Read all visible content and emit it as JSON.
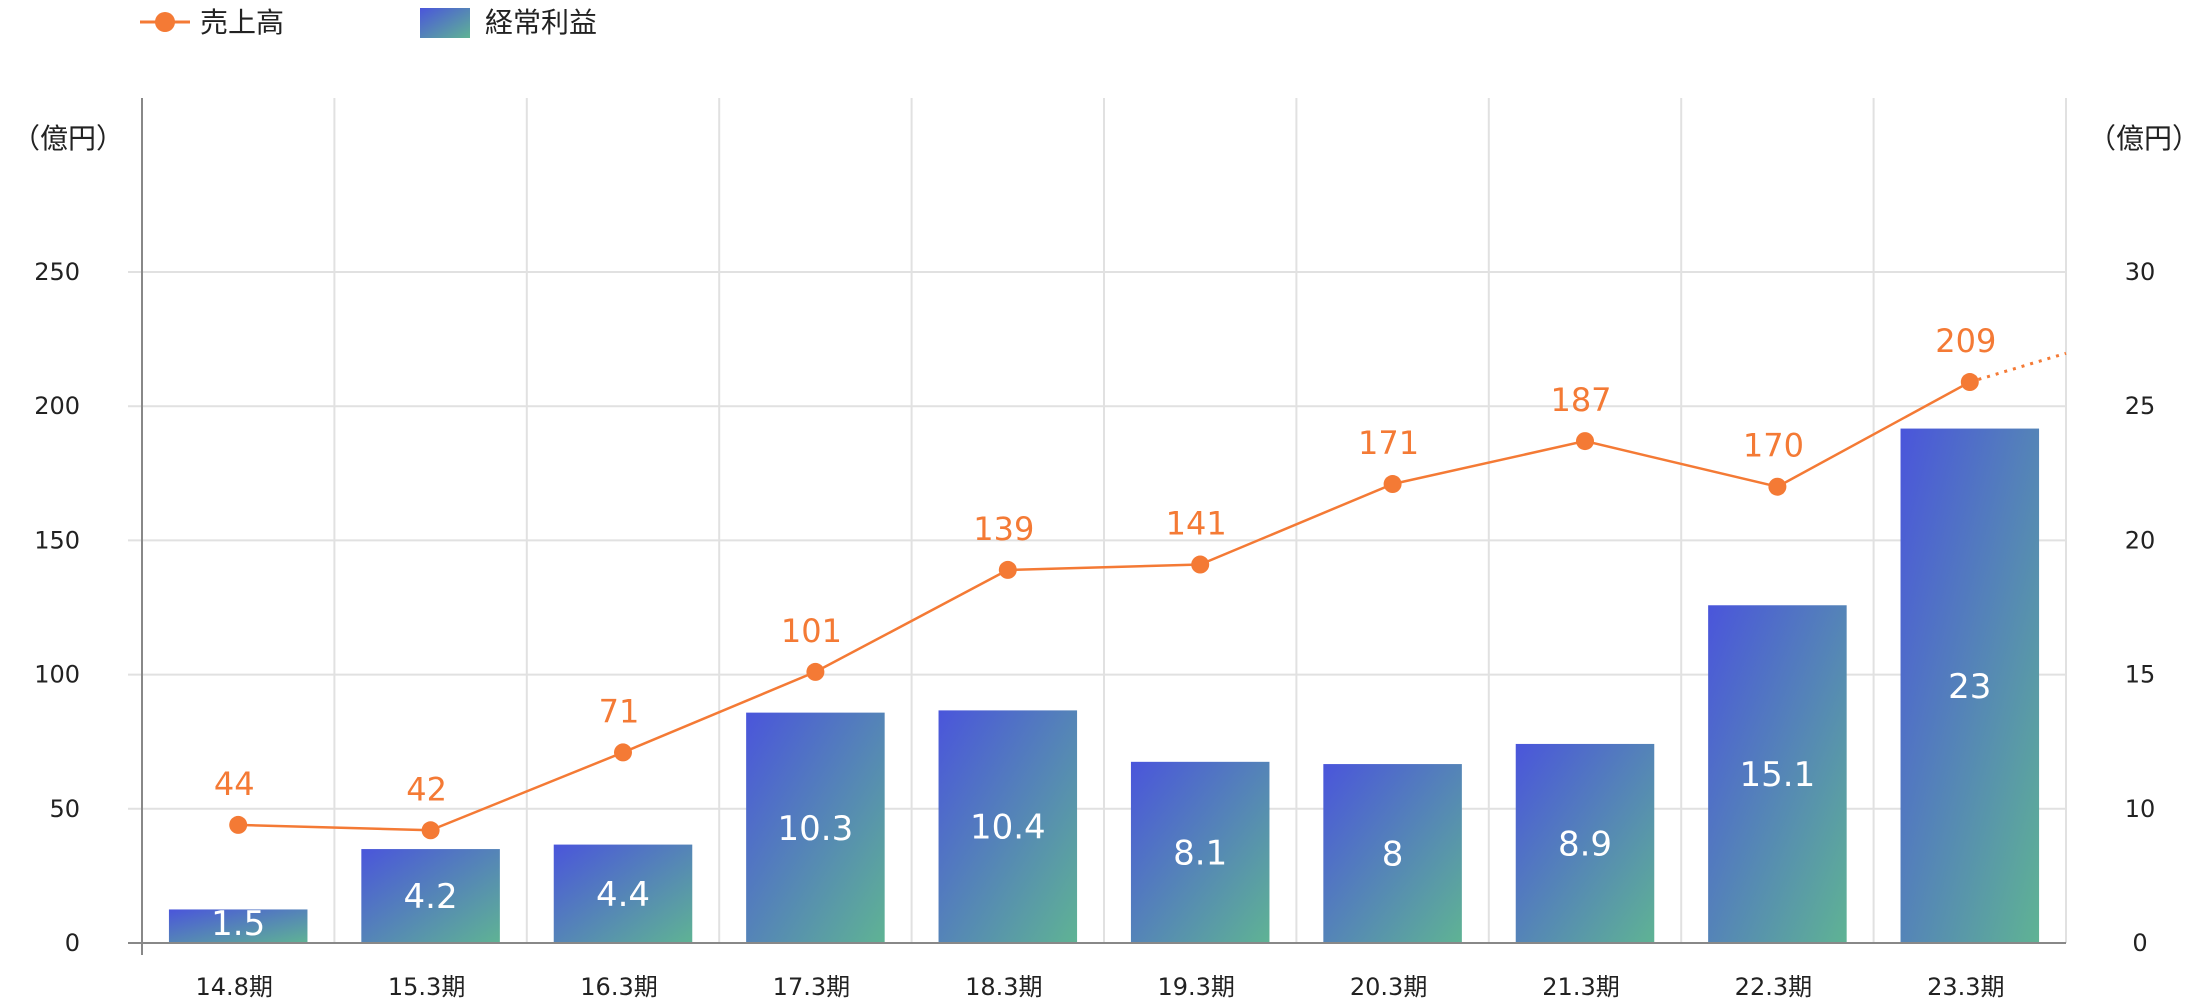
{
  "legend": {
    "line_label": "売上高",
    "bar_label": "経常利益"
  },
  "left_axis": {
    "unit": "（億円）"
  },
  "right_axis": {
    "unit": "（億円）"
  },
  "colors": {
    "line": "#f47a35",
    "bar_top": "#4a55db",
    "bar_bottom": "#5fb394",
    "grid": "#e1e1e1",
    "axis": "#888888"
  },
  "chart_data": {
    "type": "bar",
    "categories": [
      "14.8期",
      "15.3期",
      "16.3期",
      "17.3期",
      "18.3期",
      "19.3期",
      "20.3期",
      "21.3期",
      "22.3期",
      "23.3期"
    ],
    "series": [
      {
        "name": "売上高",
        "type": "line",
        "axis": "left",
        "values": [
          44,
          42,
          71,
          101,
          139,
          141,
          171,
          187,
          170,
          209
        ]
      },
      {
        "name": "経常利益",
        "type": "bar",
        "axis": "right",
        "values": [
          1.5,
          4.2,
          4.4,
          10.3,
          10.4,
          8.1,
          8,
          8.9,
          15.1,
          23
        ]
      }
    ],
    "left_ticks": [
      "0",
      "50",
      "100",
      "150",
      "200",
      "250"
    ],
    "right_ticks": [
      "0",
      "10",
      "15",
      "20",
      "25",
      "30"
    ],
    "ylim_left": [
      0,
      250
    ],
    "ylim_right": [
      0,
      30
    ],
    "grid": true,
    "legend_position": "top-left",
    "trend_extension": "dotted"
  }
}
